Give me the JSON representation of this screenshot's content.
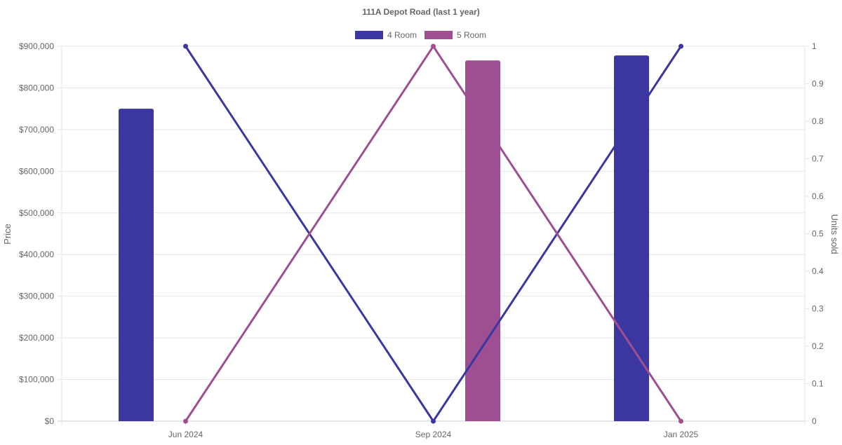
{
  "chart_data": {
    "type": "bar",
    "title": "111A Depot Road (last 1 year)",
    "categories": [
      "Jun 2024",
      "Sep 2024",
      "Jan 2025"
    ],
    "ylabel": "Price",
    "y2label": "Units sold",
    "ylim": [
      0,
      900000
    ],
    "y2lim": [
      0,
      1
    ],
    "y_ticks": [
      "$0",
      "$100,000",
      "$200,000",
      "$300,000",
      "$400,000",
      "$500,000",
      "$600,000",
      "$700,000",
      "$800,000",
      "$900,000"
    ],
    "y_tick_values": [
      0,
      100000,
      200000,
      300000,
      400000,
      500000,
      600000,
      700000,
      800000,
      900000
    ],
    "y2_ticks": [
      "0",
      "0.1",
      "0.2",
      "0.3",
      "0.4",
      "0.5",
      "0.6",
      "0.7",
      "0.8",
      "0.9",
      "1"
    ],
    "y2_tick_values": [
      0,
      0.1,
      0.2,
      0.3,
      0.4,
      0.5,
      0.6,
      0.7,
      0.8,
      0.9,
      1
    ],
    "grid": true,
    "legend_position": "top-center",
    "series": [
      {
        "name": "4 Room",
        "color": "#3b36a0",
        "price": [
          750000,
          null,
          878000
        ],
        "units_sold": [
          1,
          0,
          1
        ]
      },
      {
        "name": "5 Room",
        "color": "#9e4f91",
        "price": [
          null,
          866000,
          null
        ],
        "units_sold": [
          0,
          1,
          0
        ]
      }
    ]
  }
}
